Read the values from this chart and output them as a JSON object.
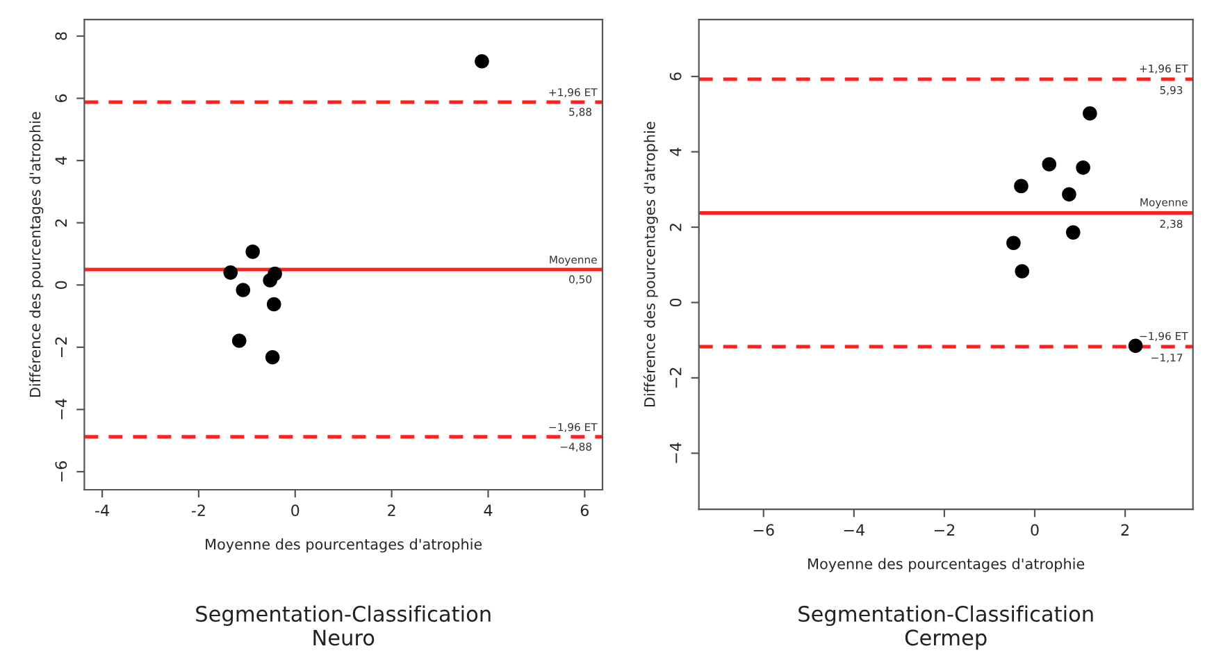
{
  "chart_data": [
    {
      "type": "scatter",
      "xlabel": "Moyenne des pourcentages d'atrophie",
      "ylabel": "Différence des pourcentages d'atrophie",
      "x": [
        3.87,
        -0.88,
        -1.34,
        -1.08,
        -0.52,
        -0.42,
        -0.44,
        -1.16,
        -0.47
      ],
      "series": [
        {
          "color": "#000000",
          "values": [
            7.19,
            1.07,
            0.4,
            -0.16,
            0.15,
            0.36,
            -0.62,
            -1.79,
            -2.32
          ]
        }
      ],
      "marker": "circle",
      "xlim": [
        -4.37,
        6.37
      ],
      "ylim": [
        -6.58,
        8.53
      ],
      "xticks": [
        -4,
        -2,
        0,
        2,
        4,
        6
      ],
      "yticks": [
        {
          "value": -6,
          "label": "−6"
        },
        {
          "value": -4,
          "label": "−4"
        },
        {
          "value": -2,
          "label": "−2"
        },
        0,
        2,
        4,
        6,
        8
      ],
      "ref_lines": [
        {
          "axis": "y",
          "value": 5.88,
          "label": "+1,96 ET",
          "color": "#ff2020",
          "line_style": "dashed"
        },
        {
          "axis": "y",
          "value": 0.5,
          "label": "Moyenne",
          "color": "#ff2020",
          "line_style": "solid"
        },
        {
          "axis": "y",
          "value": -4.88,
          "label": "−1,96 ET",
          "color": "#ff2020",
          "line_style": "dashed"
        }
      ],
      "annotations": [
        {
          "text": "5,88",
          "y": 5.88
        },
        {
          "text": "0,50",
          "y": 0.5
        },
        {
          "text": "−4,88",
          "y": -4.88
        },
        "Segmentation-Classification\nNeuro"
      ],
      "grid": false,
      "legend": false
    },
    {
      "type": "scatter",
      "xlabel": "Moyenne des pourcentages d'atrophie",
      "ylabel": "Différence des pourcentages d'atrophie",
      "x": [
        1.22,
        0.32,
        1.07,
        -0.3,
        0.76,
        0.85,
        -0.47,
        -0.28,
        2.23
      ],
      "series": [
        {
          "color": "#000000",
          "values": [
            5.02,
            3.67,
            3.58,
            3.09,
            2.87,
            1.86,
            1.58,
            0.83,
            -1.15
          ]
        }
      ],
      "marker": "circle",
      "xlim": [
        -7.43,
        3.5
      ],
      "ylim": [
        -5.49,
        7.51
      ],
      "xticks": [
        {
          "value": -6,
          "label": "−6"
        },
        {
          "value": -4,
          "label": "−4"
        },
        {
          "value": -2,
          "label": "−2"
        },
        0,
        2
      ],
      "yticks": [
        {
          "value": -4,
          "label": "−4"
        },
        {
          "value": -2,
          "label": "−2"
        },
        0,
        2,
        4,
        6
      ],
      "ref_lines": [
        {
          "axis": "y",
          "value": 5.93,
          "label": "+1,96 ET",
          "color": "#ff2020",
          "line_style": "dashed"
        },
        {
          "axis": "y",
          "value": 2.38,
          "label": "Moyenne",
          "color": "#ff2020",
          "line_style": "solid"
        },
        {
          "axis": "y",
          "value": -1.17,
          "label": "−1,96 ET",
          "color": "#ff2020",
          "line_style": "dashed"
        }
      ],
      "annotations": [
        {
          "text": "5,93",
          "y": 5.93
        },
        {
          "text": "2,38",
          "y": 2.38
        },
        {
          "text": "−1,17",
          "y": -1.17
        },
        "Segmentation-Classification\nCermep"
      ],
      "grid": false,
      "legend": false
    }
  ]
}
